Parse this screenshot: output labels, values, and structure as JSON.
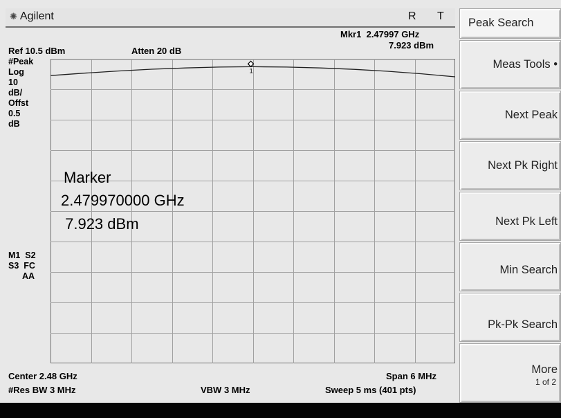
{
  "title_bar": {
    "brand": "Agilent",
    "status_r": "R",
    "status_t": "T"
  },
  "marker_header": {
    "name": "Mkr1",
    "freq": "2.47997 GHz",
    "amp": "7.923 dBm"
  },
  "ref_level": "Ref 10.5 dBm",
  "attenuation": "Atten 20 dB",
  "left_annotations": [
    "#Peak",
    "Log",
    "10",
    "dB/",
    "Offst",
    "0.5",
    "dB"
  ],
  "left_annotations2": [
    "M1  S2",
    "S3  FC",
    "AA"
  ],
  "marker_readout": {
    "label": "Marker",
    "freq": "2.479970000 GHz",
    "amp": " 7.923 dBm"
  },
  "marker_symbol_label": "1",
  "footer": {
    "center": "Center 2.48 GHz",
    "span": "Span 6 MHz",
    "rbw": "#Res BW 3 MHz",
    "vbw": "VBW 3 MHz",
    "sweep": "Sweep 5 ms (401 pts)"
  },
  "softkeys": [
    {
      "label": "Peak Search",
      "selected": true
    },
    {
      "label": "Meas Tools"
    },
    {
      "label": "Next Peak"
    },
    {
      "label": "Next Pk Right"
    },
    {
      "label": "Next Pk Left"
    },
    {
      "label": "Min Search"
    },
    {
      "label": "Pk-Pk Search"
    },
    {
      "label": "More",
      "sub": "1 of 2"
    }
  ],
  "trace": {
    "center_ghz": 2.48,
    "span_mhz": 6,
    "ref_dbm": 10.5,
    "db_per_div": 10,
    "divisions_x": 10,
    "divisions_y": 10,
    "freq_offsets_mhz": [
      -3,
      -2.5,
      -2,
      -1.5,
      -1,
      -0.5,
      0,
      0.5,
      1,
      1.5,
      2,
      2.5,
      3
    ],
    "amp_dbm": [
      5.0,
      5.8,
      6.5,
      7.1,
      7.5,
      7.8,
      7.92,
      7.8,
      7.5,
      7.05,
      6.4,
      5.6,
      4.6
    ],
    "marker_offset_mhz": -0.03,
    "marker_amp_dbm": 7.923
  },
  "colors": {
    "grid": "#a0a0a0",
    "trace": "#202020",
    "background": "#e8e8e8"
  }
}
